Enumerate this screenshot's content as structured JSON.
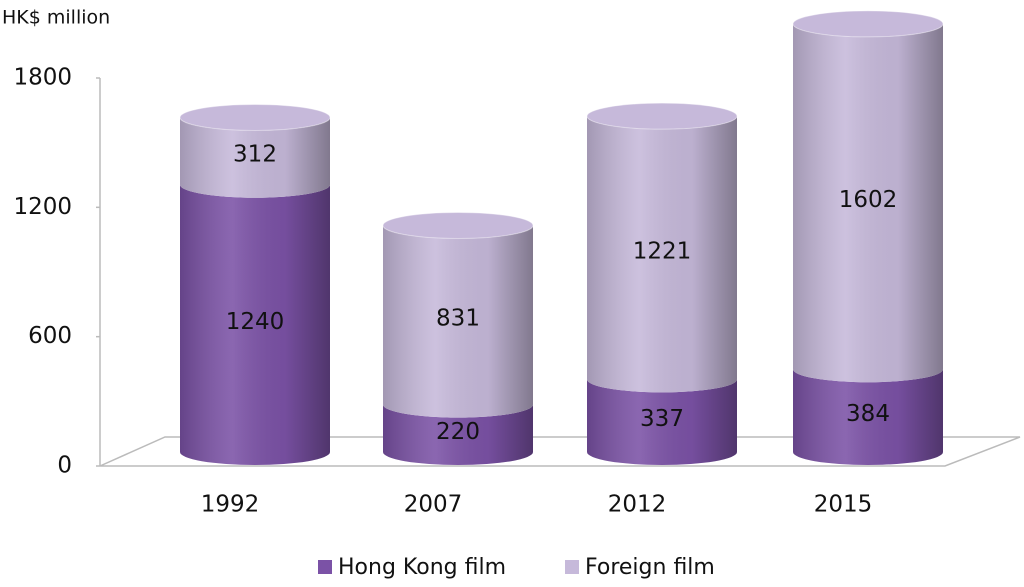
{
  "chart_data": {
    "type": "stacked-cylinder",
    "y_axis_label": "HK$ million",
    "categories": [
      "1992",
      "2007",
      "2012",
      "2015"
    ],
    "series": [
      {
        "name": "Hong Kong film",
        "color": "#7b52a6",
        "values": [
          1240,
          220,
          337,
          384
        ]
      },
      {
        "name": "Foreign film",
        "color": "#c6b9da",
        "values": [
          312,
          831,
          1221,
          1602
        ]
      }
    ],
    "ylim": [
      0,
      1800
    ],
    "yticks": [
      0,
      600,
      1200,
      1800
    ],
    "grid": false,
    "legend": "bottom"
  }
}
